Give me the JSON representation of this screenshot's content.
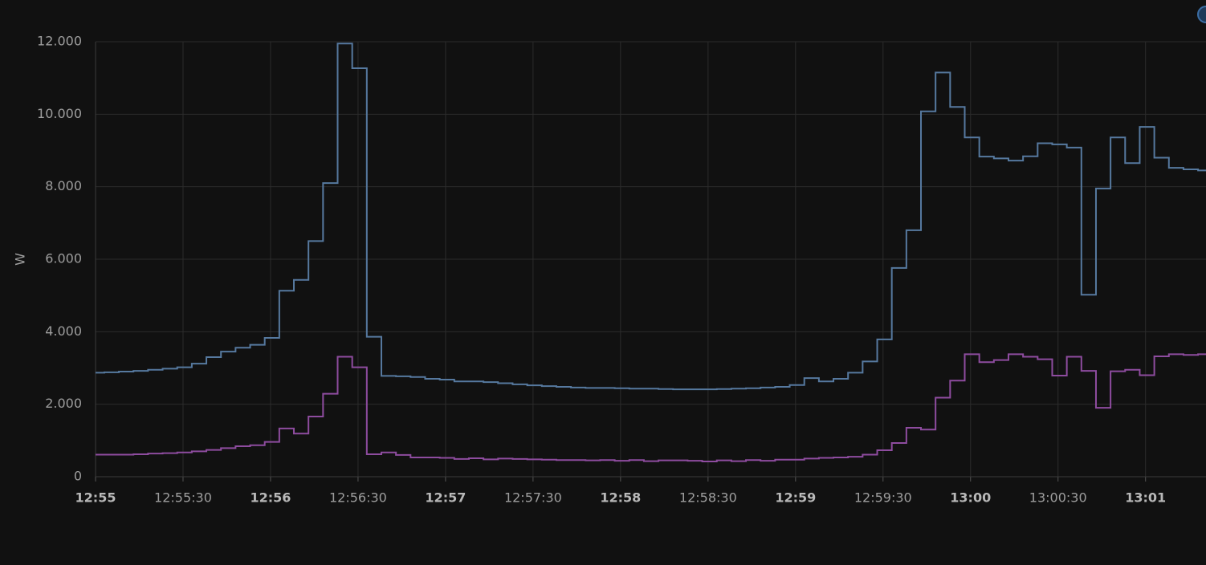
{
  "chart_data": {
    "type": "step-line",
    "ylabel": "W",
    "x": [
      "12:55:00",
      "12:55:03",
      "12:55:08",
      "12:55:13",
      "12:55:18",
      "12:55:23",
      "12:55:28",
      "12:55:33",
      "12:55:38",
      "12:55:43",
      "12:55:48",
      "12:55:53",
      "12:55:58",
      "12:56:03",
      "12:56:08",
      "12:56:13",
      "12:56:18",
      "12:56:23",
      "12:56:28",
      "12:56:33",
      "12:56:38",
      "12:56:43",
      "12:56:48",
      "12:56:53",
      "12:56:58",
      "12:57:03",
      "12:57:08",
      "12:57:13",
      "12:57:18",
      "12:57:23",
      "12:57:28",
      "12:57:33",
      "12:57:38",
      "12:57:43",
      "12:57:48",
      "12:57:53",
      "12:57:58",
      "12:58:03",
      "12:58:08",
      "12:58:13",
      "12:58:18",
      "12:58:23",
      "12:58:28",
      "12:58:33",
      "12:58:38",
      "12:58:43",
      "12:58:48",
      "12:58:53",
      "12:58:58",
      "12:59:03",
      "12:59:08",
      "12:59:13",
      "12:59:18",
      "12:59:23",
      "12:59:28",
      "12:59:33",
      "12:59:38",
      "12:59:43",
      "12:59:48",
      "12:59:53",
      "12:59:58",
      "13:00:03",
      "13:00:08",
      "13:00:13",
      "13:00:18",
      "13:00:23",
      "13:00:28",
      "13:00:33",
      "13:00:38",
      "13:00:43",
      "13:00:48",
      "13:00:53",
      "13:00:58",
      "13:01:03",
      "13:01:08",
      "13:01:13",
      "13:01:18"
    ],
    "series": [
      {
        "color": "#56799f",
        "values": [
          2870,
          2880,
          2900,
          2920,
          2950,
          2980,
          3020,
          3120,
          3300,
          3450,
          3560,
          3640,
          3830,
          5130,
          5430,
          6500,
          8100,
          11950,
          11270,
          3860,
          2780,
          2770,
          2750,
          2700,
          2680,
          2630,
          2630,
          2610,
          2580,
          2550,
          2520,
          2500,
          2480,
          2460,
          2450,
          2450,
          2440,
          2430,
          2430,
          2420,
          2410,
          2410,
          2410,
          2420,
          2430,
          2440,
          2460,
          2480,
          2530,
          2720,
          2630,
          2700,
          2870,
          3180,
          3790,
          5760,
          6800,
          10080,
          11150,
          10200,
          9360,
          8830,
          8780,
          8720,
          8840,
          9200,
          9170,
          9080,
          5020,
          7950,
          9360,
          8650,
          9650,
          8800,
          8520,
          8480,
          8450
        ]
      },
      {
        "color": "#8e4c9f",
        "values": [
          610,
          610,
          610,
          620,
          640,
          650,
          670,
          700,
          740,
          790,
          840,
          870,
          960,
          1330,
          1190,
          1660,
          2290,
          3310,
          3020,
          620,
          670,
          600,
          530,
          530,
          520,
          490,
          510,
          480,
          500,
          490,
          480,
          470,
          460,
          460,
          450,
          460,
          440,
          460,
          430,
          450,
          450,
          440,
          420,
          450,
          430,
          460,
          440,
          470,
          470,
          500,
          520,
          530,
          550,
          610,
          730,
          930,
          1350,
          1300,
          2180,
          2650,
          3380,
          3160,
          3220,
          3380,
          3310,
          3240,
          2790,
          3310,
          2920,
          1900,
          2910,
          2950,
          2800,
          3320,
          3380,
          3360,
          3380
        ]
      }
    ],
    "xlim": [
      "12:55:00",
      "13:01:21"
    ],
    "xticks": [
      {
        "value": "12:55:00",
        "label": "12:55"
      },
      "12:55:30",
      {
        "value": "12:56:00",
        "label": "12:56"
      },
      "12:56:30",
      {
        "value": "12:57:00",
        "label": "12:57"
      },
      "12:57:30",
      {
        "value": "12:58:00",
        "label": "12:58"
      },
      "12:58:30",
      {
        "value": "12:59:00",
        "label": "12:59"
      },
      "12:59:30",
      {
        "value": "13:00:00",
        "label": "13:00"
      },
      "13:00:30",
      {
        "value": "13:01:00",
        "label": "13:01"
      }
    ],
    "ylim": [
      0,
      12000
    ],
    "yticks": [
      0,
      {
        "value": 2000,
        "label": "2.000"
      },
      {
        "value": 4000,
        "label": "4.000"
      },
      {
        "value": 6000,
        "label": "6.000"
      },
      {
        "value": 8000,
        "label": "8.000"
      },
      {
        "value": 10000,
        "label": "10.000"
      },
      {
        "value": 12000,
        "label": "12.000"
      }
    ],
    "grid": true
  }
}
